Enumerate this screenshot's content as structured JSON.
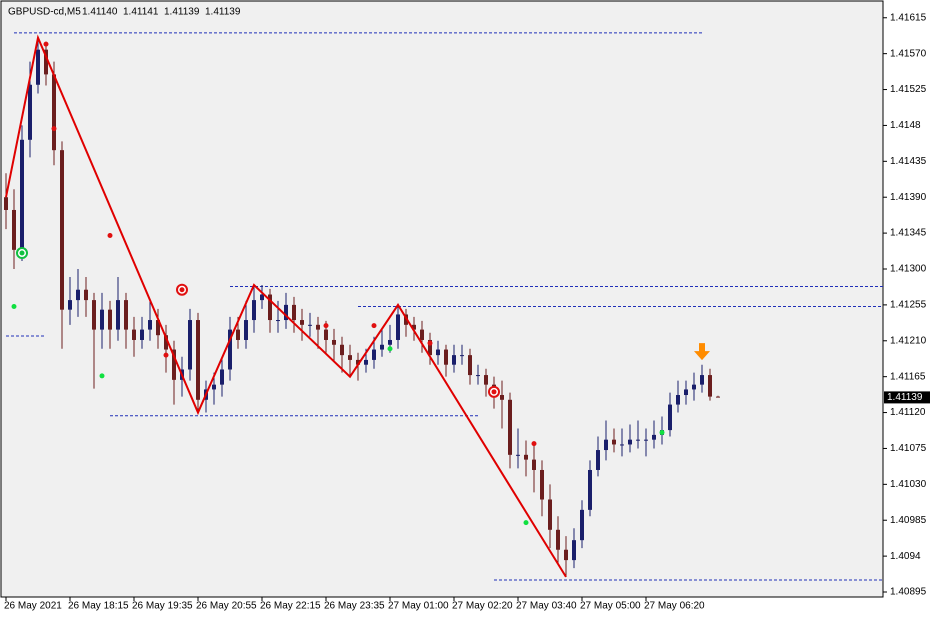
{
  "chart_data": {
    "type": "candlestick",
    "title": "GBPUSD-cd,M5",
    "last_bar_labels": [
      "1.41140",
      "1.41141",
      "1.41139",
      "1.41139"
    ],
    "up_color": "#1a1f6b",
    "down_color": "#6b1e1e",
    "background": "#f0f0f0",
    "ylim": [
      1.4089,
      1.41631
    ],
    "yticks": [
      1.41615,
      {
        "value": 1.4157,
        "label": "1.41570"
      },
      1.41525,
      1.4148,
      1.41435,
      {
        "value": 1.4139,
        "label": "1.41390"
      },
      1.41345,
      {
        "value": 1.413,
        "label": "1.41300"
      },
      1.41255,
      {
        "value": 1.4121,
        "label": "1.41210"
      },
      1.41165,
      {
        "value": 1.4112,
        "label": "1.41120"
      },
      1.41075,
      {
        "value": 1.4103,
        "label": "1.41030"
      },
      1.40985,
      1.4094,
      1.40895
    ],
    "xticks": [
      {
        "value": 0,
        "label": "26 May 2021"
      },
      {
        "value": 8,
        "label": "26 May 18:15"
      },
      {
        "value": 16,
        "label": "26 May 19:35"
      },
      {
        "value": 24,
        "label": "26 May 20:55"
      },
      {
        "value": 32,
        "label": "26 May 22:15"
      },
      {
        "value": 40,
        "label": "26 May 23:35"
      },
      {
        "value": 48,
        "label": "27 May 01:00"
      },
      {
        "value": 56,
        "label": "27 May 02:20"
      },
      {
        "value": 64,
        "label": "27 May 03:40"
      },
      {
        "value": 72,
        "label": "27 May 05:00"
      },
      {
        "value": 80,
        "label": "27 May 06:20"
      }
    ],
    "candles": [
      [
        1.4139,
        1.4142,
        1.4135,
        1.41374
      ],
      [
        1.41374,
        1.414,
        1.413,
        1.41324
      ],
      [
        1.41324,
        1.4148,
        1.4131,
        1.41462
      ],
      [
        1.41462,
        1.4156,
        1.4144,
        1.41531
      ],
      [
        1.41531,
        1.4159,
        1.4152,
        1.41575
      ],
      [
        1.41575,
        1.41585,
        1.4153,
        1.41544
      ],
      [
        1.41544,
        1.4156,
        1.4143,
        1.41449
      ],
      [
        1.41449,
        1.4146,
        1.412,
        1.41249
      ],
      [
        1.41249,
        1.4129,
        1.4123,
        1.41261
      ],
      [
        1.41261,
        1.413,
        1.4124,
        1.41274
      ],
      [
        1.41274,
        1.4129,
        1.4124,
        1.41261
      ],
      [
        1.41261,
        1.4127,
        1.4115,
        1.41224
      ],
      [
        1.41224,
        1.4127,
        1.412,
        1.41249
      ],
      [
        1.41249,
        1.4126,
        1.412,
        1.41224
      ],
      [
        1.41224,
        1.4129,
        1.4121,
        1.41261
      ],
      [
        1.41261,
        1.4127,
        1.412,
        1.41224
      ],
      [
        1.41224,
        1.4124,
        1.4119,
        1.41211
      ],
      [
        1.41211,
        1.4124,
        1.412,
        1.41224
      ],
      [
        1.41224,
        1.4126,
        1.4121,
        1.41236
      ],
      [
        1.41236,
        1.4125,
        1.412,
        1.41217
      ],
      [
        1.41217,
        1.4123,
        1.4117,
        1.41199
      ],
      [
        1.41199,
        1.4121,
        1.4113,
        1.41161
      ],
      [
        1.41161,
        1.4119,
        1.4114,
        1.41174
      ],
      [
        1.41174,
        1.4125,
        1.4116,
        1.41236
      ],
      [
        1.41236,
        1.41245,
        1.4112,
        1.41136
      ],
      [
        1.41136,
        1.4116,
        1.4112,
        1.41149
      ],
      [
        1.41149,
        1.4117,
        1.4113,
        1.41155
      ],
      [
        1.41155,
        1.4119,
        1.4114,
        1.41174
      ],
      [
        1.41174,
        1.4124,
        1.4116,
        1.41224
      ],
      [
        1.41224,
        1.4124,
        1.412,
        1.41211
      ],
      [
        1.41211,
        1.4126,
        1.412,
        1.41236
      ],
      [
        1.41236,
        1.4128,
        1.4122,
        1.41261
      ],
      [
        1.41261,
        1.4128,
        1.4125,
        1.41268
      ],
      [
        1.41268,
        1.41275,
        1.4122,
        1.41236
      ],
      [
        1.41236,
        1.4126,
        1.4122,
        1.41236
      ],
      [
        1.41236,
        1.4127,
        1.41225,
        1.41255
      ],
      [
        1.41255,
        1.41265,
        1.4122,
        1.41236
      ],
      [
        1.41236,
        1.4125,
        1.4121,
        1.4123
      ],
      [
        1.4123,
        1.41245,
        1.41215,
        1.4123
      ],
      [
        1.4123,
        1.4124,
        1.412,
        1.41224
      ],
      [
        1.41224,
        1.41235,
        1.41195,
        1.41211
      ],
      [
        1.41211,
        1.41225,
        1.41185,
        1.41205
      ],
      [
        1.41205,
        1.41215,
        1.4117,
        1.41192
      ],
      [
        1.41192,
        1.41205,
        1.41165,
        1.41186
      ],
      [
        1.41186,
        1.41195,
        1.4116,
        1.4118
      ],
      [
        1.4118,
        1.412,
        1.4117,
        1.41186
      ],
      [
        1.41186,
        1.41215,
        1.41175,
        1.41199
      ],
      [
        1.41199,
        1.41225,
        1.4119,
        1.41205
      ],
      [
        1.41205,
        1.4123,
        1.41195,
        1.41211
      ],
      [
        1.41211,
        1.41255,
        1.412,
        1.41243
      ],
      [
        1.41243,
        1.4125,
        1.41215,
        1.4123
      ],
      [
        1.4123,
        1.4124,
        1.4121,
        1.41224
      ],
      [
        1.41224,
        1.41235,
        1.41195,
        1.41211
      ],
      [
        1.41211,
        1.4122,
        1.4118,
        1.41192
      ],
      [
        1.41192,
        1.4121,
        1.4118,
        1.41199
      ],
      [
        1.41199,
        1.41205,
        1.41165,
        1.4118
      ],
      [
        1.4118,
        1.41205,
        1.4117,
        1.41192
      ],
      [
        1.41192,
        1.41205,
        1.4118,
        1.41192
      ],
      [
        1.41192,
        1.412,
        1.41155,
        1.41167
      ],
      [
        1.41167,
        1.4118,
        1.41155,
        1.41167
      ],
      [
        1.41167,
        1.41175,
        1.4114,
        1.41155
      ],
      [
        1.41155,
        1.41165,
        1.41125,
        1.41142
      ],
      [
        1.41142,
        1.4116,
        1.411,
        1.41136
      ],
      [
        1.41136,
        1.41145,
        1.4105,
        1.41067
      ],
      [
        1.41067,
        1.411,
        1.4105,
        1.41067
      ],
      [
        1.41067,
        1.41085,
        1.4104,
        1.41061
      ],
      [
        1.41061,
        1.4108,
        1.4102,
        1.41048
      ],
      [
        1.41048,
        1.4106,
        1.4099,
        1.41011
      ],
      [
        1.41011,
        1.4103,
        1.4095,
        1.40973
      ],
      [
        1.40973,
        1.4099,
        1.4093,
        1.40948
      ],
      [
        1.40948,
        1.40965,
        1.40914,
        1.40935
      ],
      [
        1.40935,
        1.40975,
        1.40925,
        1.4096
      ],
      [
        1.4096,
        1.4101,
        1.4095,
        1.40998
      ],
      [
        1.40998,
        1.4106,
        1.4099,
        1.41048
      ],
      [
        1.41048,
        1.4109,
        1.4104,
        1.41073
      ],
      [
        1.41073,
        1.4111,
        1.4106,
        1.41086
      ],
      [
        1.41086,
        1.411,
        1.4107,
        1.4108
      ],
      [
        1.4108,
        1.411,
        1.41065,
        1.4108
      ],
      [
        1.4108,
        1.41105,
        1.4107,
        1.41086
      ],
      [
        1.41086,
        1.4111,
        1.41075,
        1.41086
      ],
      [
        1.41086,
        1.411,
        1.41065,
        1.41086
      ],
      [
        1.41086,
        1.4111,
        1.41075,
        1.41092
      ],
      [
        1.41092,
        1.41115,
        1.4108,
        1.41098
      ],
      [
        1.41098,
        1.41145,
        1.4109,
        1.4113
      ],
      [
        1.4113,
        1.4116,
        1.4112,
        1.41142
      ],
      [
        1.41142,
        1.4116,
        1.4113,
        1.41149
      ],
      [
        1.41149,
        1.4117,
        1.41135,
        1.41155
      ],
      [
        1.41155,
        1.4118,
        1.41145,
        1.41167
      ],
      [
        1.41167,
        1.41175,
        1.41135,
        1.4114
      ],
      [
        1.4114,
        1.41141,
        1.41139,
        1.41139
      ]
    ],
    "zigzag": {
      "color": "#e00000",
      "x": [
        0,
        4,
        24,
        31,
        43,
        49,
        70
      ],
      "y": [
        1.4139,
        1.4159,
        1.4112,
        1.4128,
        1.41165,
        1.41255,
        1.40914
      ]
    },
    "levels": {
      "color": "#1f2fb8",
      "y": [
        1.41596,
        1.41216,
        1.41116,
        1.41278,
        1.41253,
        1.4091
      ],
      "from": [
        1,
        0,
        13,
        28,
        44,
        61
      ],
      "to": [
        87,
        5,
        59,
        110,
        110,
        110
      ]
    },
    "sell_dots": {
      "color": "#e01010",
      "x": [
        5,
        6,
        13,
        20,
        40,
        46,
        53,
        66
      ],
      "y": [
        1.41582,
        1.41476,
        1.41342,
        1.41192,
        1.41229,
        1.41229,
        1.41207,
        1.41081
      ]
    },
    "buy_dots": {
      "color": "#10e040",
      "x": [
        1,
        12,
        48,
        65,
        82
      ],
      "y": [
        1.41253,
        1.41166,
        1.412,
        1.40982,
        1.41095
      ]
    },
    "buy_circles": {
      "color": "#10c040",
      "x": [
        2
      ],
      "y": [
        1.4132
      ]
    },
    "sell_circles": {
      "color": "#e01010",
      "x": [
        22,
        61
      ],
      "y": [
        1.41274,
        1.41146
      ]
    },
    "arrow": {
      "color": "#ff8c00",
      "x": 87,
      "y": 1.41192
    }
  }
}
